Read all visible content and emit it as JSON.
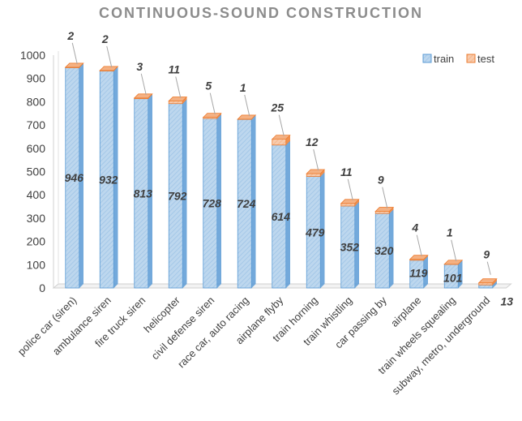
{
  "chart_data": {
    "type": "bar",
    "stacked": true,
    "title": "CONTINUOUS-SOUND CONSTRUCTION",
    "categories": [
      "police car (siren)",
      "ambulance siren",
      "fire truck siren",
      "helicopter",
      "civil defense siren",
      "race car, auto racing",
      "airplane flyby",
      "train horning",
      "train whistling",
      "car passing by",
      "airplane",
      "train wheels squealing",
      "subway, metro, underground"
    ],
    "series": [
      {
        "name": "train",
        "values": [
          946,
          932,
          813,
          792,
          728,
          724,
          614,
          479,
          352,
          320,
          119,
          101,
          13
        ]
      },
      {
        "name": "test",
        "values": [
          2,
          2,
          3,
          11,
          5,
          1,
          25,
          12,
          11,
          9,
          4,
          1,
          9
        ]
      }
    ],
    "yticks": [
      "0",
      "100",
      "200",
      "300",
      "400",
      "500",
      "600",
      "700",
      "800",
      "900",
      "1000"
    ],
    "ylim": [
      0,
      1000
    ],
    "grid": false,
    "legend_position": "top-right",
    "colors": {
      "train": "#bdd7ee",
      "train_edge": "#5b9bd5",
      "test": "#f4b183",
      "test_edge": "#ed7d31"
    }
  }
}
